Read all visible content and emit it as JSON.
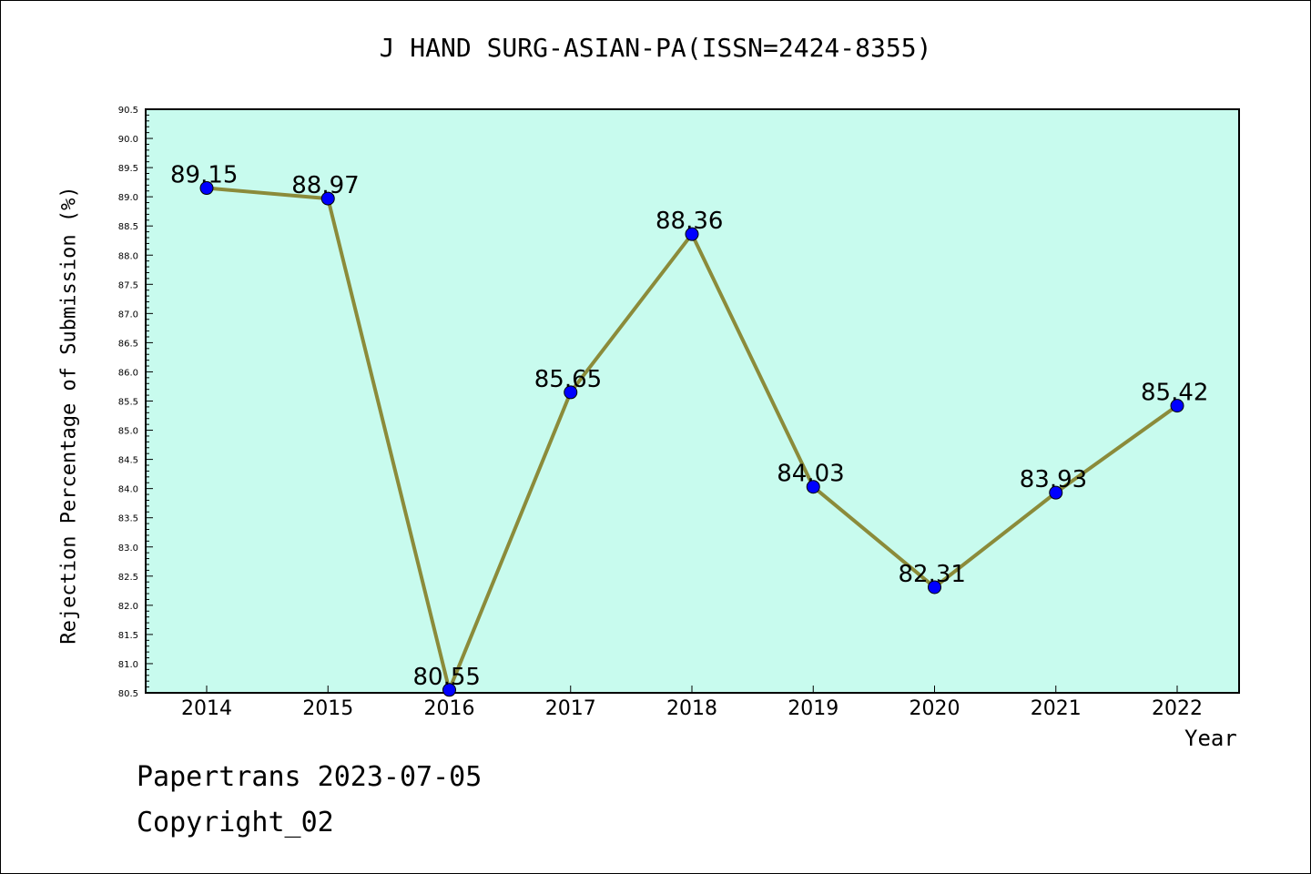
{
  "title": "J HAND SURG-ASIAN-PA(ISSN=2424-8355)",
  "footer": {
    "line1": "Papertrans 2023-07-05",
    "line2": "Copyright_02"
  },
  "colors": {
    "plot_background": "#c8fbee",
    "line": "#8b8b3a",
    "marker": "#0000ff",
    "axis": "#000000"
  },
  "chart_data": {
    "type": "line",
    "title": "J HAND SURG-ASIAN-PA(ISSN=2424-8355)",
    "xlabel": "Year",
    "ylabel": "Rejection Percentage of Submission (%)",
    "categories": [
      "2014",
      "2015",
      "2016",
      "2017",
      "2018",
      "2019",
      "2020",
      "2021",
      "2022"
    ],
    "series": [
      {
        "values": [
          89.15,
          88.97,
          80.55,
          85.65,
          88.36,
          84.03,
          82.31,
          83.93,
          85.42
        ],
        "data_labels": [
          "89.15",
          "88.97",
          "80.55",
          "85.65",
          "88.36",
          "84.03",
          "82.31",
          "83.93",
          "85.42"
        ]
      }
    ],
    "ylim": [
      80.5,
      90.5
    ],
    "yticks": [
      "80.5",
      "81.0",
      "81.5",
      "82.0",
      "82.5",
      "83.0",
      "83.5",
      "84.0",
      "84.5",
      "85.0",
      "85.5",
      "86.0",
      "86.5",
      "87.0",
      "87.5",
      "88.0",
      "88.5",
      "89.0",
      "89.5",
      "90.0",
      "90.5"
    ],
    "grid": false,
    "legend": "none"
  }
}
